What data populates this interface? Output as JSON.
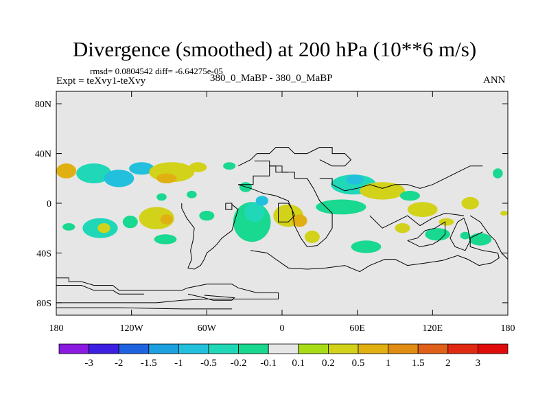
{
  "figure": {
    "title": "Divergence (smoothed) at 200 hPa (10**6 m/s)",
    "stats": "rmsd= 0.0804542 diff= -6.64275e-05",
    "left_label": "Expt = teXvy1-teXvy",
    "center_label": "380_0_MaBP - 380_0_MaBP",
    "right_label": "ANN"
  },
  "chart_data": {
    "type": "heatmap",
    "title": "Divergence (smoothed) at 200 hPa (10**6 m/s)",
    "xlabel": "",
    "ylabel": "",
    "xlim": [
      -180,
      180
    ],
    "ylim": [
      -90,
      90
    ],
    "x_ticks": [
      {
        "value": -180,
        "label": "180"
      },
      {
        "value": -120,
        "label": "120W"
      },
      {
        "value": -60,
        "label": "60W"
      },
      {
        "value": 0,
        "label": "0"
      },
      {
        "value": 60,
        "label": "60E"
      },
      {
        "value": 120,
        "label": "120E"
      },
      {
        "value": 180,
        "label": "180"
      }
    ],
    "y_ticks": [
      {
        "value": 80,
        "label": "80N"
      },
      {
        "value": 40,
        "label": "40N"
      },
      {
        "value": 0,
        "label": "0"
      },
      {
        "value": -40,
        "label": "40S"
      },
      {
        "value": -80,
        "label": "80S"
      }
    ],
    "colorbar": {
      "labels": [
        "-3",
        "-2",
        "-1.5",
        "-1",
        "-0.5",
        "-0.2",
        "-0.1",
        "0.1",
        "0.2",
        "0.5",
        "1",
        "1.5",
        "2",
        "3"
      ],
      "colors": [
        "#8a1ae0",
        "#3c1fe0",
        "#1f63e0",
        "#1da0e0",
        "#22c0dc",
        "#20d8b8",
        "#19d890",
        "#e6e6e6",
        "#a8dc16",
        "#d2d21a",
        "#e0b012",
        "#e08c12",
        "#e0601a",
        "#e02a12",
        "#e00c0c"
      ]
    },
    "background_color": "#e6e6e6",
    "blobs": [
      {
        "lon": -172,
        "lat": 26,
        "rlon": 8,
        "rlat": 6,
        "level": "0.5"
      },
      {
        "lon": -150,
        "lat": 24,
        "rlon": 14,
        "rlat": 8,
        "level": "-0.2"
      },
      {
        "lon": -130,
        "lat": 20,
        "rlon": 12,
        "rlat": 7,
        "level": "-0.5"
      },
      {
        "lon": -112,
        "lat": 28,
        "rlon": 10,
        "rlat": 5,
        "level": "-0.5"
      },
      {
        "lon": -88,
        "lat": 25,
        "rlon": 18,
        "rlat": 8,
        "level": "0.2"
      },
      {
        "lon": -92,
        "lat": 20,
        "rlon": 8,
        "rlat": 4,
        "level": "0.5"
      },
      {
        "lon": -67,
        "lat": 29,
        "rlon": 7,
        "rlat": 4,
        "level": "0.2"
      },
      {
        "lon": -72,
        "lat": 7,
        "rlon": 4,
        "rlat": 3,
        "level": "-0.1"
      },
      {
        "lon": -96,
        "lat": 5,
        "rlon": 4,
        "rlat": 3,
        "level": "-0.1"
      },
      {
        "lon": -42,
        "lat": 30,
        "rlon": 5,
        "rlat": 3,
        "level": "-0.1"
      },
      {
        "lon": -29,
        "lat": 13,
        "rlon": 5,
        "rlat": 4,
        "level": "-0.1"
      },
      {
        "lon": -145,
        "lat": -20,
        "rlon": 14,
        "rlat": 8,
        "level": "-0.2"
      },
      {
        "lon": -142,
        "lat": -20,
        "rlon": 5,
        "rlat": 4,
        "level": "0.2"
      },
      {
        "lon": -100,
        "lat": -12,
        "rlon": 14,
        "rlat": 9,
        "level": "0.2"
      },
      {
        "lon": -92,
        "lat": -13,
        "rlon": 5,
        "rlat": 4,
        "level": "0.5"
      },
      {
        "lon": -121,
        "lat": -15,
        "rlon": 6,
        "rlat": 5,
        "level": "-0.1"
      },
      {
        "lon": -170,
        "lat": -19,
        "rlon": 5,
        "rlat": 3,
        "level": "-0.1"
      },
      {
        "lon": -93,
        "lat": -29,
        "rlon": 9,
        "rlat": 4,
        "level": "-0.1"
      },
      {
        "lon": -60,
        "lat": -10,
        "rlon": 6,
        "rlat": 4,
        "level": "-0.1"
      },
      {
        "lon": -24,
        "lat": -15,
        "rlon": 15,
        "rlat": 16,
        "level": "-0.1"
      },
      {
        "lon": -22,
        "lat": -7,
        "rlon": 8,
        "rlat": 8,
        "level": "-0.2"
      },
      {
        "lon": -16,
        "lat": 2,
        "rlon": 5,
        "rlat": 4,
        "level": "-0.5"
      },
      {
        "lon": 5,
        "lat": -10,
        "rlon": 12,
        "rlat": 9,
        "level": "0.2"
      },
      {
        "lon": 14,
        "lat": -14,
        "rlon": 6,
        "rlat": 5,
        "level": "0.5"
      },
      {
        "lon": 24,
        "lat": -27,
        "rlon": 6,
        "rlat": 5,
        "level": "0.2"
      },
      {
        "lon": 47,
        "lat": -3,
        "rlon": 20,
        "rlat": 6,
        "level": "-0.1"
      },
      {
        "lon": 57,
        "lat": 15,
        "rlon": 18,
        "rlat": 8,
        "level": "-0.2"
      },
      {
        "lon": 58,
        "lat": 19,
        "rlon": 7,
        "rlat": 4,
        "level": "-0.5"
      },
      {
        "lon": 80,
        "lat": 10,
        "rlon": 18,
        "rlat": 7,
        "level": "0.2"
      },
      {
        "lon": 102,
        "lat": 6,
        "rlon": 8,
        "rlat": 4,
        "level": "-0.1"
      },
      {
        "lon": 112,
        "lat": -5,
        "rlon": 12,
        "rlat": 6,
        "level": "0.2"
      },
      {
        "lon": 150,
        "lat": 0,
        "rlon": 7,
        "rlat": 5,
        "level": "0.2"
      },
      {
        "lon": 172,
        "lat": 24,
        "rlon": 4,
        "rlat": 4,
        "level": "-0.1"
      },
      {
        "lon": 67,
        "lat": -35,
        "rlon": 12,
        "rlat": 5,
        "level": "-0.1"
      },
      {
        "lon": 96,
        "lat": -20,
        "rlon": 6,
        "rlat": 4,
        "level": "0.2"
      },
      {
        "lon": 124,
        "lat": -25,
        "rlon": 10,
        "rlat": 5,
        "level": "-0.1"
      },
      {
        "lon": 158,
        "lat": -29,
        "rlon": 9,
        "rlat": 5,
        "level": "-0.1"
      },
      {
        "lon": 146,
        "lat": -26,
        "rlon": 4,
        "rlat": 3,
        "level": "-0.1"
      },
      {
        "lon": 131,
        "lat": -15,
        "rlon": 6,
        "rlat": 3,
        "level": "0.2"
      },
      {
        "lon": 177,
        "lat": -8,
        "rlon": 3,
        "rlat": 2,
        "level": "0.2"
      }
    ],
    "coastlines": [
      [
        [
          -180,
          -60
        ],
        [
          -170,
          -60
        ],
        [
          -170,
          -63
        ],
        [
          -160,
          -63
        ],
        [
          -150,
          -66
        ],
        [
          -135,
          -66
        ],
        [
          -130,
          -70
        ],
        [
          -80,
          -70
        ],
        [
          -75,
          -68
        ],
        [
          -60,
          -65
        ],
        [
          -40,
          -65
        ],
        [
          -35,
          -68
        ],
        [
          -20,
          -72
        ],
        [
          -3,
          -72
        ],
        [
          -3,
          -77
        ],
        [
          -15,
          -77
        ],
        [
          -40,
          -77
        ],
        [
          -60,
          -77
        ],
        [
          -80,
          -78
        ],
        [
          -100,
          -80
        ],
        [
          -150,
          -80
        ],
        [
          -180,
          -80
        ]
      ],
      [
        [
          -180,
          -66
        ],
        [
          -160,
          -66
        ],
        [
          -150,
          -70
        ],
        [
          -135,
          -70
        ],
        [
          -130,
          -73
        ],
        [
          -110,
          -73
        ]
      ],
      [
        [
          -180,
          -84
        ],
        [
          -130,
          -84
        ],
        [
          -80,
          -85
        ],
        [
          -40,
          -85
        ]
      ],
      [
        [
          -75,
          -73
        ],
        [
          -62,
          -76
        ],
        [
          -55,
          -78
        ],
        [
          -40,
          -78
        ],
        [
          -38,
          -76
        ],
        [
          -50,
          -75
        ],
        [
          -62,
          -74
        ]
      ],
      [
        [
          -40,
          -1
        ],
        [
          -35,
          -5
        ],
        [
          -38,
          -15
        ],
        [
          -40,
          -22
        ],
        [
          -48,
          -28
        ],
        [
          -52,
          -33
        ],
        [
          -55,
          -36
        ],
        [
          -60,
          -40
        ],
        [
          -62,
          -45
        ],
        [
          -65,
          -50
        ],
        [
          -70,
          -53
        ],
        [
          -75,
          -52
        ],
        [
          -72,
          -45
        ],
        [
          -73,
          -38
        ],
        [
          -71,
          -30
        ],
        [
          -70,
          -20
        ],
        [
          -76,
          -12
        ],
        [
          -80,
          -4
        ],
        [
          -80,
          0
        ]
      ],
      [
        [
          -45,
          0
        ],
        [
          -40,
          0
        ],
        [
          -40,
          -5
        ],
        [
          -45,
          -5
        ],
        [
          -45,
          0
        ]
      ],
      [
        [
          -35,
          15
        ],
        [
          -23,
          15
        ],
        [
          -23,
          22
        ],
        [
          -10,
          22
        ],
        [
          -10,
          30
        ],
        [
          0,
          30
        ],
        [
          0,
          25
        ],
        [
          10,
          25
        ],
        [
          10,
          20
        ],
        [
          20,
          20
        ],
        [
          25,
          12
        ],
        [
          30,
          2
        ],
        [
          40,
          -8
        ],
        [
          40,
          -20
        ],
        [
          35,
          -28
        ],
        [
          28,
          -34
        ],
        [
          20,
          -35
        ],
        [
          15,
          -28
        ],
        [
          10,
          -18
        ],
        [
          8,
          -5
        ],
        [
          5,
          2
        ],
        [
          -5,
          6
        ],
        [
          -15,
          8
        ],
        [
          -25,
          12
        ],
        [
          -35,
          15
        ]
      ],
      [
        [
          -25,
          -38
        ],
        [
          -12,
          -40
        ],
        [
          -5,
          -45
        ],
        [
          5,
          -52
        ],
        [
          20,
          -53
        ],
        [
          35,
          -52
        ],
        [
          50,
          -50
        ],
        [
          62,
          -55
        ],
        [
          70,
          -50
        ],
        [
          82,
          -45
        ],
        [
          90,
          -45
        ],
        [
          100,
          -50
        ],
        [
          115,
          -48
        ],
        [
          128,
          -46
        ],
        [
          140,
          -42
        ],
        [
          148,
          -45
        ],
        [
          157,
          -50
        ],
        [
          167,
          -48
        ],
        [
          173,
          -44
        ],
        [
          172,
          -40
        ],
        [
          160,
          -38
        ],
        [
          150,
          -35
        ],
        [
          150,
          -28
        ],
        [
          160,
          -23
        ]
      ],
      [
        [
          -22,
          34
        ],
        [
          -10,
          34
        ],
        [
          -10,
          30
        ],
        [
          -5,
          30
        ],
        [
          -5,
          25
        ],
        [
          5,
          25
        ]
      ],
      [
        [
          -3,
          0
        ],
        [
          5,
          0
        ],
        [
          8,
          -5
        ],
        [
          10,
          -10
        ],
        [
          5,
          -15
        ],
        [
          -3,
          -15
        ],
        [
          -3,
          -5
        ],
        [
          -3,
          0
        ]
      ],
      [
        [
          -35,
          30
        ],
        [
          -25,
          35
        ],
        [
          -20,
          40
        ],
        [
          -10,
          40
        ],
        [
          -5,
          45
        ],
        [
          5,
          45
        ],
        [
          10,
          40
        ],
        [
          20,
          40
        ],
        [
          30,
          45
        ],
        [
          40,
          45
        ],
        [
          40,
          40
        ],
        [
          50,
          40
        ],
        [
          55,
          35
        ],
        [
          50,
          30
        ],
        [
          40,
          30
        ],
        [
          30,
          35
        ]
      ],
      [
        [
          30,
          20
        ],
        [
          40,
          20
        ],
        [
          40,
          15
        ],
        [
          50,
          10
        ],
        [
          60,
          12
        ],
        [
          70,
          15
        ],
        [
          80,
          12
        ],
        [
          90,
          15
        ],
        [
          100,
          15
        ],
        [
          110,
          12
        ],
        [
          120,
          15
        ],
        [
          130,
          20
        ],
        [
          140,
          25
        ],
        [
          150,
          30
        ],
        [
          160,
          30
        ]
      ],
      [
        [
          70,
          -10
        ],
        [
          80,
          -20
        ],
        [
          90,
          -15
        ],
        [
          100,
          -10
        ],
        [
          110,
          -18
        ],
        [
          120,
          -12
        ],
        [
          130,
          -8
        ],
        [
          145,
          -10
        ]
      ],
      [
        [
          100,
          -30
        ],
        [
          110,
          -35
        ],
        [
          120,
          -33
        ],
        [
          125,
          -30
        ],
        [
          130,
          -25
        ],
        [
          130,
          -15
        ],
        [
          122,
          -20
        ],
        [
          114,
          -22
        ],
        [
          108,
          -28
        ],
        [
          100,
          -30
        ]
      ],
      [
        [
          140,
          -15
        ],
        [
          145,
          -12
        ],
        [
          148,
          -20
        ],
        [
          150,
          -30
        ],
        [
          146,
          -38
        ],
        [
          138,
          -35
        ],
        [
          134,
          -28
        ],
        [
          140,
          -15
        ]
      ],
      [
        [
          150,
          -10
        ],
        [
          158,
          -15
        ],
        [
          165,
          -25
        ],
        [
          170,
          -30
        ],
        [
          175,
          -40
        ],
        [
          180,
          -45
        ]
      ]
    ]
  }
}
